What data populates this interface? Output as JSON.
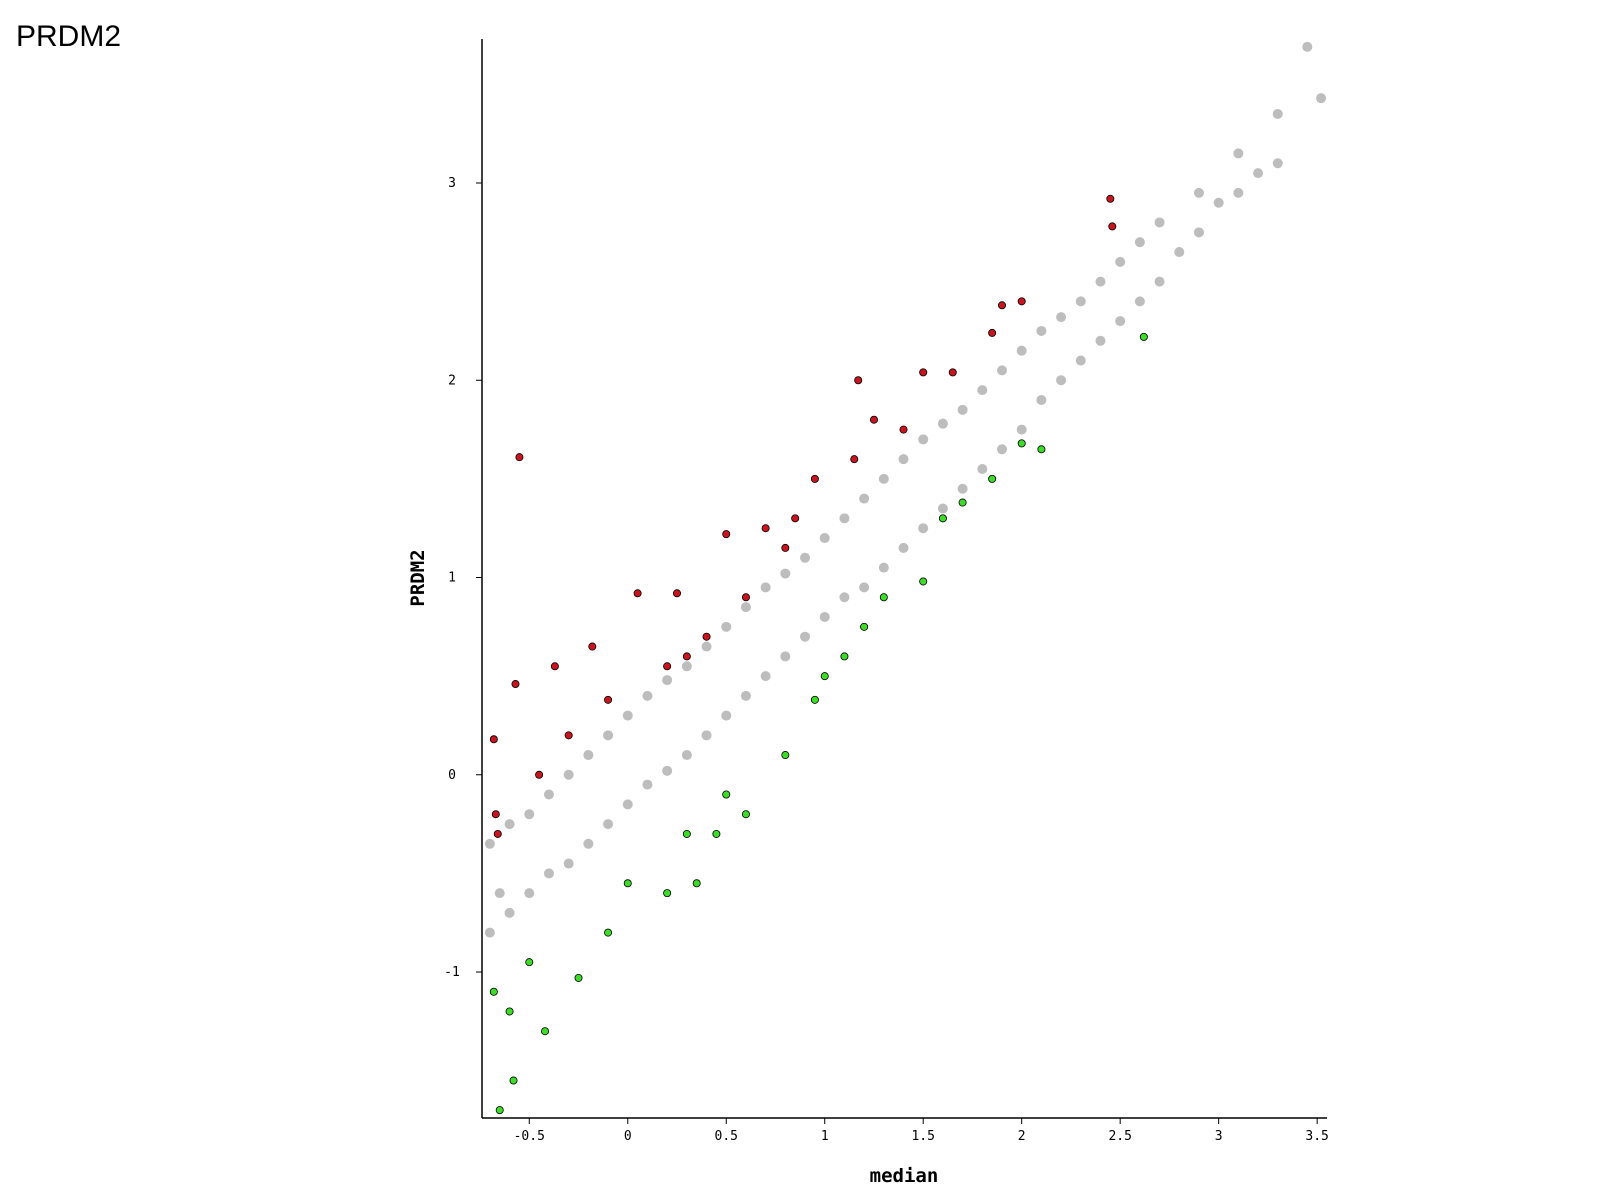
{
  "chart_data": {
    "type": "scatter",
    "title": "PRDM2",
    "x_label": "median",
    "y_label": "PRDM2",
    "xlim": [
      -0.74,
      3.55
    ],
    "ylim": [
      -1.74,
      3.73
    ],
    "xticks": [
      -0.5,
      0,
      0.5,
      1,
      1.5,
      2,
      2.5,
      3,
      3.5
    ],
    "yticks": [
      -1,
      0,
      1,
      2,
      3
    ],
    "series": [
      {
        "color": "#bdbdbd",
        "x": [
          -0.7,
          -0.7,
          -0.65,
          -0.6,
          -0.6,
          -0.5,
          -0.5,
          -0.4,
          -0.4,
          -0.3,
          -0.3,
          -0.2,
          -0.2,
          -0.1,
          -0.1,
          0,
          0,
          0.1,
          0.1,
          0.2,
          0.2,
          0.3,
          0.3,
          0.4,
          0.4,
          0.5,
          0.5,
          0.6,
          0.6,
          0.7,
          0.7,
          0.8,
          0.8,
          0.9,
          0.9,
          1,
          1,
          1.1,
          1.1,
          1.2,
          1.2,
          1.3,
          1.3,
          1.4,
          1.4,
          1.5,
          1.5,
          1.6,
          1.6,
          1.7,
          1.7,
          1.8,
          1.8,
          1.9,
          1.9,
          2,
          2,
          2.1,
          2.1,
          2.2,
          2.2,
          2.3,
          2.3,
          2.4,
          2.4,
          2.5,
          2.5,
          2.6,
          2.6,
          2.7,
          2.7,
          2.8,
          2.9,
          2.9,
          3,
          3.1,
          3.1,
          3.2,
          3.3,
          3.3,
          3.45,
          3.52
        ],
        "y": [
          -0.35,
          -0.8,
          -0.6,
          -0.25,
          -0.7,
          -0.2,
          -0.6,
          -0.1,
          -0.5,
          0,
          -0.45,
          0.1,
          -0.35,
          0.2,
          -0.25,
          0.3,
          -0.15,
          0.4,
          -0.05,
          0.48,
          0.02,
          0.55,
          0.1,
          0.65,
          0.2,
          0.75,
          0.3,
          0.85,
          0.4,
          0.95,
          0.5,
          1.02,
          0.6,
          1.1,
          0.7,
          1.2,
          0.8,
          1.3,
          0.9,
          1.4,
          0.95,
          1.5,
          1.05,
          1.6,
          1.15,
          1.7,
          1.25,
          1.78,
          1.35,
          1.85,
          1.45,
          1.95,
          1.55,
          2.05,
          1.65,
          2.15,
          1.75,
          2.25,
          1.9,
          2.32,
          2.0,
          2.4,
          2.1,
          2.5,
          2.2,
          2.6,
          2.3,
          2.7,
          2.4,
          2.8,
          2.5,
          2.65,
          2.95,
          2.75,
          2.9,
          3.15,
          2.95,
          3.05,
          3.35,
          3.1,
          3.69,
          3.43
        ]
      },
      {
        "color": "#c8141e",
        "x": [
          -0.55,
          -0.68,
          -0.67,
          -0.66,
          -0.57,
          -0.37,
          -0.18,
          0.05,
          -0.1,
          0.2,
          0.25,
          0.4,
          0.5,
          0.6,
          0.7,
          0.85,
          0.95,
          1.15,
          1.17,
          1.4,
          1.5,
          1.65,
          1.9,
          2.0,
          1.85,
          2.45,
          2.46,
          -0.45,
          -0.3,
          0.3,
          0.8,
          1.25
        ],
        "y": [
          1.61,
          0.18,
          -0.2,
          -0.3,
          0.46,
          0.55,
          0.65,
          0.92,
          0.38,
          0.55,
          0.92,
          0.7,
          1.22,
          0.9,
          1.25,
          1.3,
          1.5,
          1.6,
          2.0,
          1.75,
          2.04,
          2.04,
          2.38,
          2.4,
          2.24,
          2.92,
          2.78,
          0.0,
          0.2,
          0.6,
          1.15,
          1.8
        ]
      },
      {
        "color": "#3cdc28",
        "x": [
          -0.65,
          -0.58,
          -0.42,
          -0.25,
          -0.1,
          0.2,
          0.35,
          0.3,
          0.5,
          0.6,
          0.8,
          0.95,
          1.1,
          1.2,
          1.5,
          1.6,
          1.7,
          1.85,
          2.0,
          2.1,
          2.62,
          -0.68,
          -0.6,
          -0.5,
          0,
          0.45,
          1,
          1.3
        ],
        "y": [
          -1.7,
          -1.55,
          -1.3,
          -1.03,
          -0.8,
          -0.6,
          -0.55,
          -0.3,
          -0.1,
          -0.2,
          0.1,
          0.38,
          0.6,
          0.75,
          0.98,
          1.3,
          1.38,
          1.5,
          1.68,
          1.65,
          2.22,
          -1.1,
          -1.2,
          -0.95,
          -0.55,
          -0.3,
          0.5,
          0.9
        ]
      }
    ]
  }
}
